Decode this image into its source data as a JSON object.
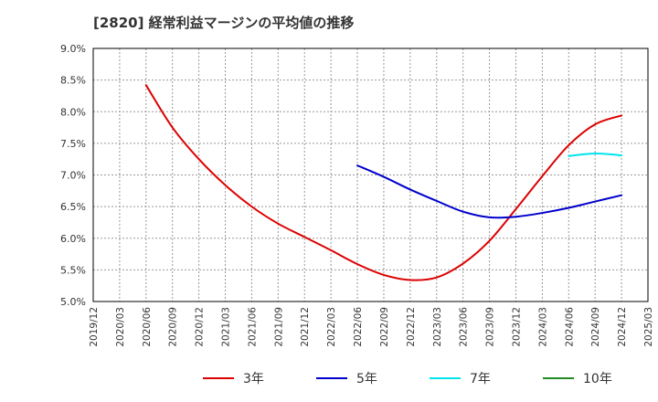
{
  "chart_data": {
    "type": "line",
    "title": "[2820]  経常利益マージンの平均値の推移",
    "xlabel": "",
    "ylabel": "",
    "x_ticks": [
      "2019/12",
      "2020/03",
      "2020/06",
      "2020/09",
      "2020/12",
      "2021/03",
      "2021/06",
      "2021/09",
      "2021/12",
      "2022/03",
      "2022/06",
      "2022/09",
      "2022/12",
      "2023/03",
      "2023/06",
      "2023/09",
      "2023/12",
      "2024/03",
      "2024/06",
      "2024/09",
      "2024/12",
      "2025/03"
    ],
    "y_ticks": [
      "5.0%",
      "5.5%",
      "6.0%",
      "6.5%",
      "7.0%",
      "7.5%",
      "8.0%",
      "8.5%",
      "9.0%"
    ],
    "ylim": [
      5.0,
      9.0
    ],
    "grid": true,
    "legend_position": "bottom",
    "series": [
      {
        "name": "3年",
        "color": "#dd0000",
        "points": [
          [
            "2020/06",
            8.42
          ],
          [
            "2020/09",
            7.75
          ],
          [
            "2020/12",
            7.25
          ],
          [
            "2021/03",
            6.84
          ],
          [
            "2021/06",
            6.5
          ],
          [
            "2021/09",
            6.23
          ],
          [
            "2021/12",
            6.02
          ],
          [
            "2022/03",
            5.81
          ],
          [
            "2022/06",
            5.59
          ],
          [
            "2022/09",
            5.42
          ],
          [
            "2022/12",
            5.34
          ],
          [
            "2023/03",
            5.38
          ],
          [
            "2023/06",
            5.6
          ],
          [
            "2023/09",
            5.96
          ],
          [
            "2023/12",
            6.46
          ],
          [
            "2024/03",
            6.98
          ],
          [
            "2024/06",
            7.47
          ],
          [
            "2024/09",
            7.8
          ],
          [
            "2024/12",
            7.94
          ]
        ]
      },
      {
        "name": "5年",
        "color": "#0000cc",
        "points": [
          [
            "2022/06",
            7.15
          ],
          [
            "2022/09",
            6.97
          ],
          [
            "2022/12",
            6.77
          ],
          [
            "2023/03",
            6.59
          ],
          [
            "2023/06",
            6.42
          ],
          [
            "2023/09",
            6.33
          ],
          [
            "2023/12",
            6.34
          ],
          [
            "2024/03",
            6.4
          ],
          [
            "2024/06",
            6.48
          ],
          [
            "2024/09",
            6.58
          ],
          [
            "2024/12",
            6.68
          ]
        ]
      },
      {
        "name": "7年",
        "color": "#00e5ee",
        "points": [
          [
            "2024/06",
            7.3
          ],
          [
            "2024/09",
            7.34
          ],
          [
            "2024/12",
            7.31
          ]
        ]
      },
      {
        "name": "10年",
        "color": "#228b22",
        "points": []
      }
    ]
  }
}
